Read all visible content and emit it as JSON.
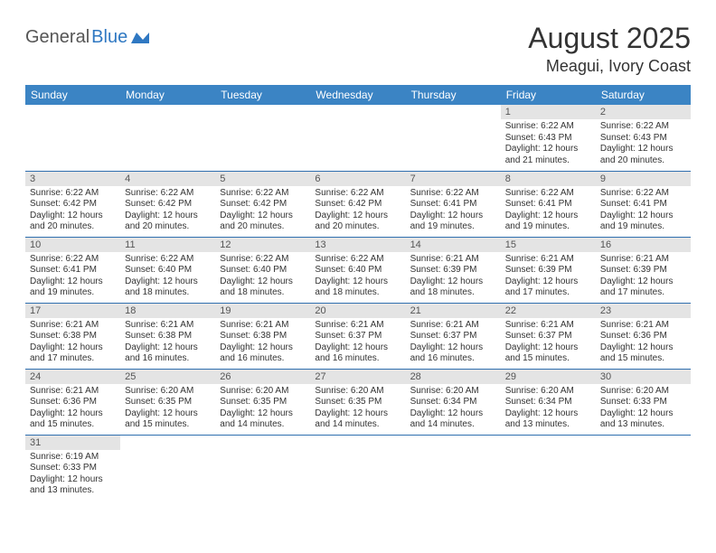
{
  "logo": {
    "general": "General",
    "blue": "Blue"
  },
  "title": "August 2025",
  "location": "Meagui, Ivory Coast",
  "weekdays": [
    "Sunday",
    "Monday",
    "Tuesday",
    "Wednesday",
    "Thursday",
    "Friday",
    "Saturday"
  ],
  "colors": {
    "header_bg": "#3b84c4",
    "header_text": "#ffffff",
    "daynum_bg": "#e4e4e4",
    "border": "#2f6faf"
  },
  "weeks": [
    [
      null,
      null,
      null,
      null,
      null,
      {
        "n": "1",
        "sr": "6:22 AM",
        "ss": "6:43 PM",
        "dl": "12 hours and 21 minutes."
      },
      {
        "n": "2",
        "sr": "6:22 AM",
        "ss": "6:43 PM",
        "dl": "12 hours and 20 minutes."
      }
    ],
    [
      {
        "n": "3",
        "sr": "6:22 AM",
        "ss": "6:42 PM",
        "dl": "12 hours and 20 minutes."
      },
      {
        "n": "4",
        "sr": "6:22 AM",
        "ss": "6:42 PM",
        "dl": "12 hours and 20 minutes."
      },
      {
        "n": "5",
        "sr": "6:22 AM",
        "ss": "6:42 PM",
        "dl": "12 hours and 20 minutes."
      },
      {
        "n": "6",
        "sr": "6:22 AM",
        "ss": "6:42 PM",
        "dl": "12 hours and 20 minutes."
      },
      {
        "n": "7",
        "sr": "6:22 AM",
        "ss": "6:41 PM",
        "dl": "12 hours and 19 minutes."
      },
      {
        "n": "8",
        "sr": "6:22 AM",
        "ss": "6:41 PM",
        "dl": "12 hours and 19 minutes."
      },
      {
        "n": "9",
        "sr": "6:22 AM",
        "ss": "6:41 PM",
        "dl": "12 hours and 19 minutes."
      }
    ],
    [
      {
        "n": "10",
        "sr": "6:22 AM",
        "ss": "6:41 PM",
        "dl": "12 hours and 19 minutes."
      },
      {
        "n": "11",
        "sr": "6:22 AM",
        "ss": "6:40 PM",
        "dl": "12 hours and 18 minutes."
      },
      {
        "n": "12",
        "sr": "6:22 AM",
        "ss": "6:40 PM",
        "dl": "12 hours and 18 minutes."
      },
      {
        "n": "13",
        "sr": "6:22 AM",
        "ss": "6:40 PM",
        "dl": "12 hours and 18 minutes."
      },
      {
        "n": "14",
        "sr": "6:21 AM",
        "ss": "6:39 PM",
        "dl": "12 hours and 18 minutes."
      },
      {
        "n": "15",
        "sr": "6:21 AM",
        "ss": "6:39 PM",
        "dl": "12 hours and 17 minutes."
      },
      {
        "n": "16",
        "sr": "6:21 AM",
        "ss": "6:39 PM",
        "dl": "12 hours and 17 minutes."
      }
    ],
    [
      {
        "n": "17",
        "sr": "6:21 AM",
        "ss": "6:38 PM",
        "dl": "12 hours and 17 minutes."
      },
      {
        "n": "18",
        "sr": "6:21 AM",
        "ss": "6:38 PM",
        "dl": "12 hours and 16 minutes."
      },
      {
        "n": "19",
        "sr": "6:21 AM",
        "ss": "6:38 PM",
        "dl": "12 hours and 16 minutes."
      },
      {
        "n": "20",
        "sr": "6:21 AM",
        "ss": "6:37 PM",
        "dl": "12 hours and 16 minutes."
      },
      {
        "n": "21",
        "sr": "6:21 AM",
        "ss": "6:37 PM",
        "dl": "12 hours and 16 minutes."
      },
      {
        "n": "22",
        "sr": "6:21 AM",
        "ss": "6:37 PM",
        "dl": "12 hours and 15 minutes."
      },
      {
        "n": "23",
        "sr": "6:21 AM",
        "ss": "6:36 PM",
        "dl": "12 hours and 15 minutes."
      }
    ],
    [
      {
        "n": "24",
        "sr": "6:21 AM",
        "ss": "6:36 PM",
        "dl": "12 hours and 15 minutes."
      },
      {
        "n": "25",
        "sr": "6:20 AM",
        "ss": "6:35 PM",
        "dl": "12 hours and 15 minutes."
      },
      {
        "n": "26",
        "sr": "6:20 AM",
        "ss": "6:35 PM",
        "dl": "12 hours and 14 minutes."
      },
      {
        "n": "27",
        "sr": "6:20 AM",
        "ss": "6:35 PM",
        "dl": "12 hours and 14 minutes."
      },
      {
        "n": "28",
        "sr": "6:20 AM",
        "ss": "6:34 PM",
        "dl": "12 hours and 14 minutes."
      },
      {
        "n": "29",
        "sr": "6:20 AM",
        "ss": "6:34 PM",
        "dl": "12 hours and 13 minutes."
      },
      {
        "n": "30",
        "sr": "6:20 AM",
        "ss": "6:33 PM",
        "dl": "12 hours and 13 minutes."
      }
    ],
    [
      {
        "n": "31",
        "sr": "6:19 AM",
        "ss": "6:33 PM",
        "dl": "12 hours and 13 minutes."
      },
      null,
      null,
      null,
      null,
      null,
      null
    ]
  ],
  "labels": {
    "sunrise": "Sunrise: ",
    "sunset": "Sunset: ",
    "daylight": "Daylight: "
  }
}
